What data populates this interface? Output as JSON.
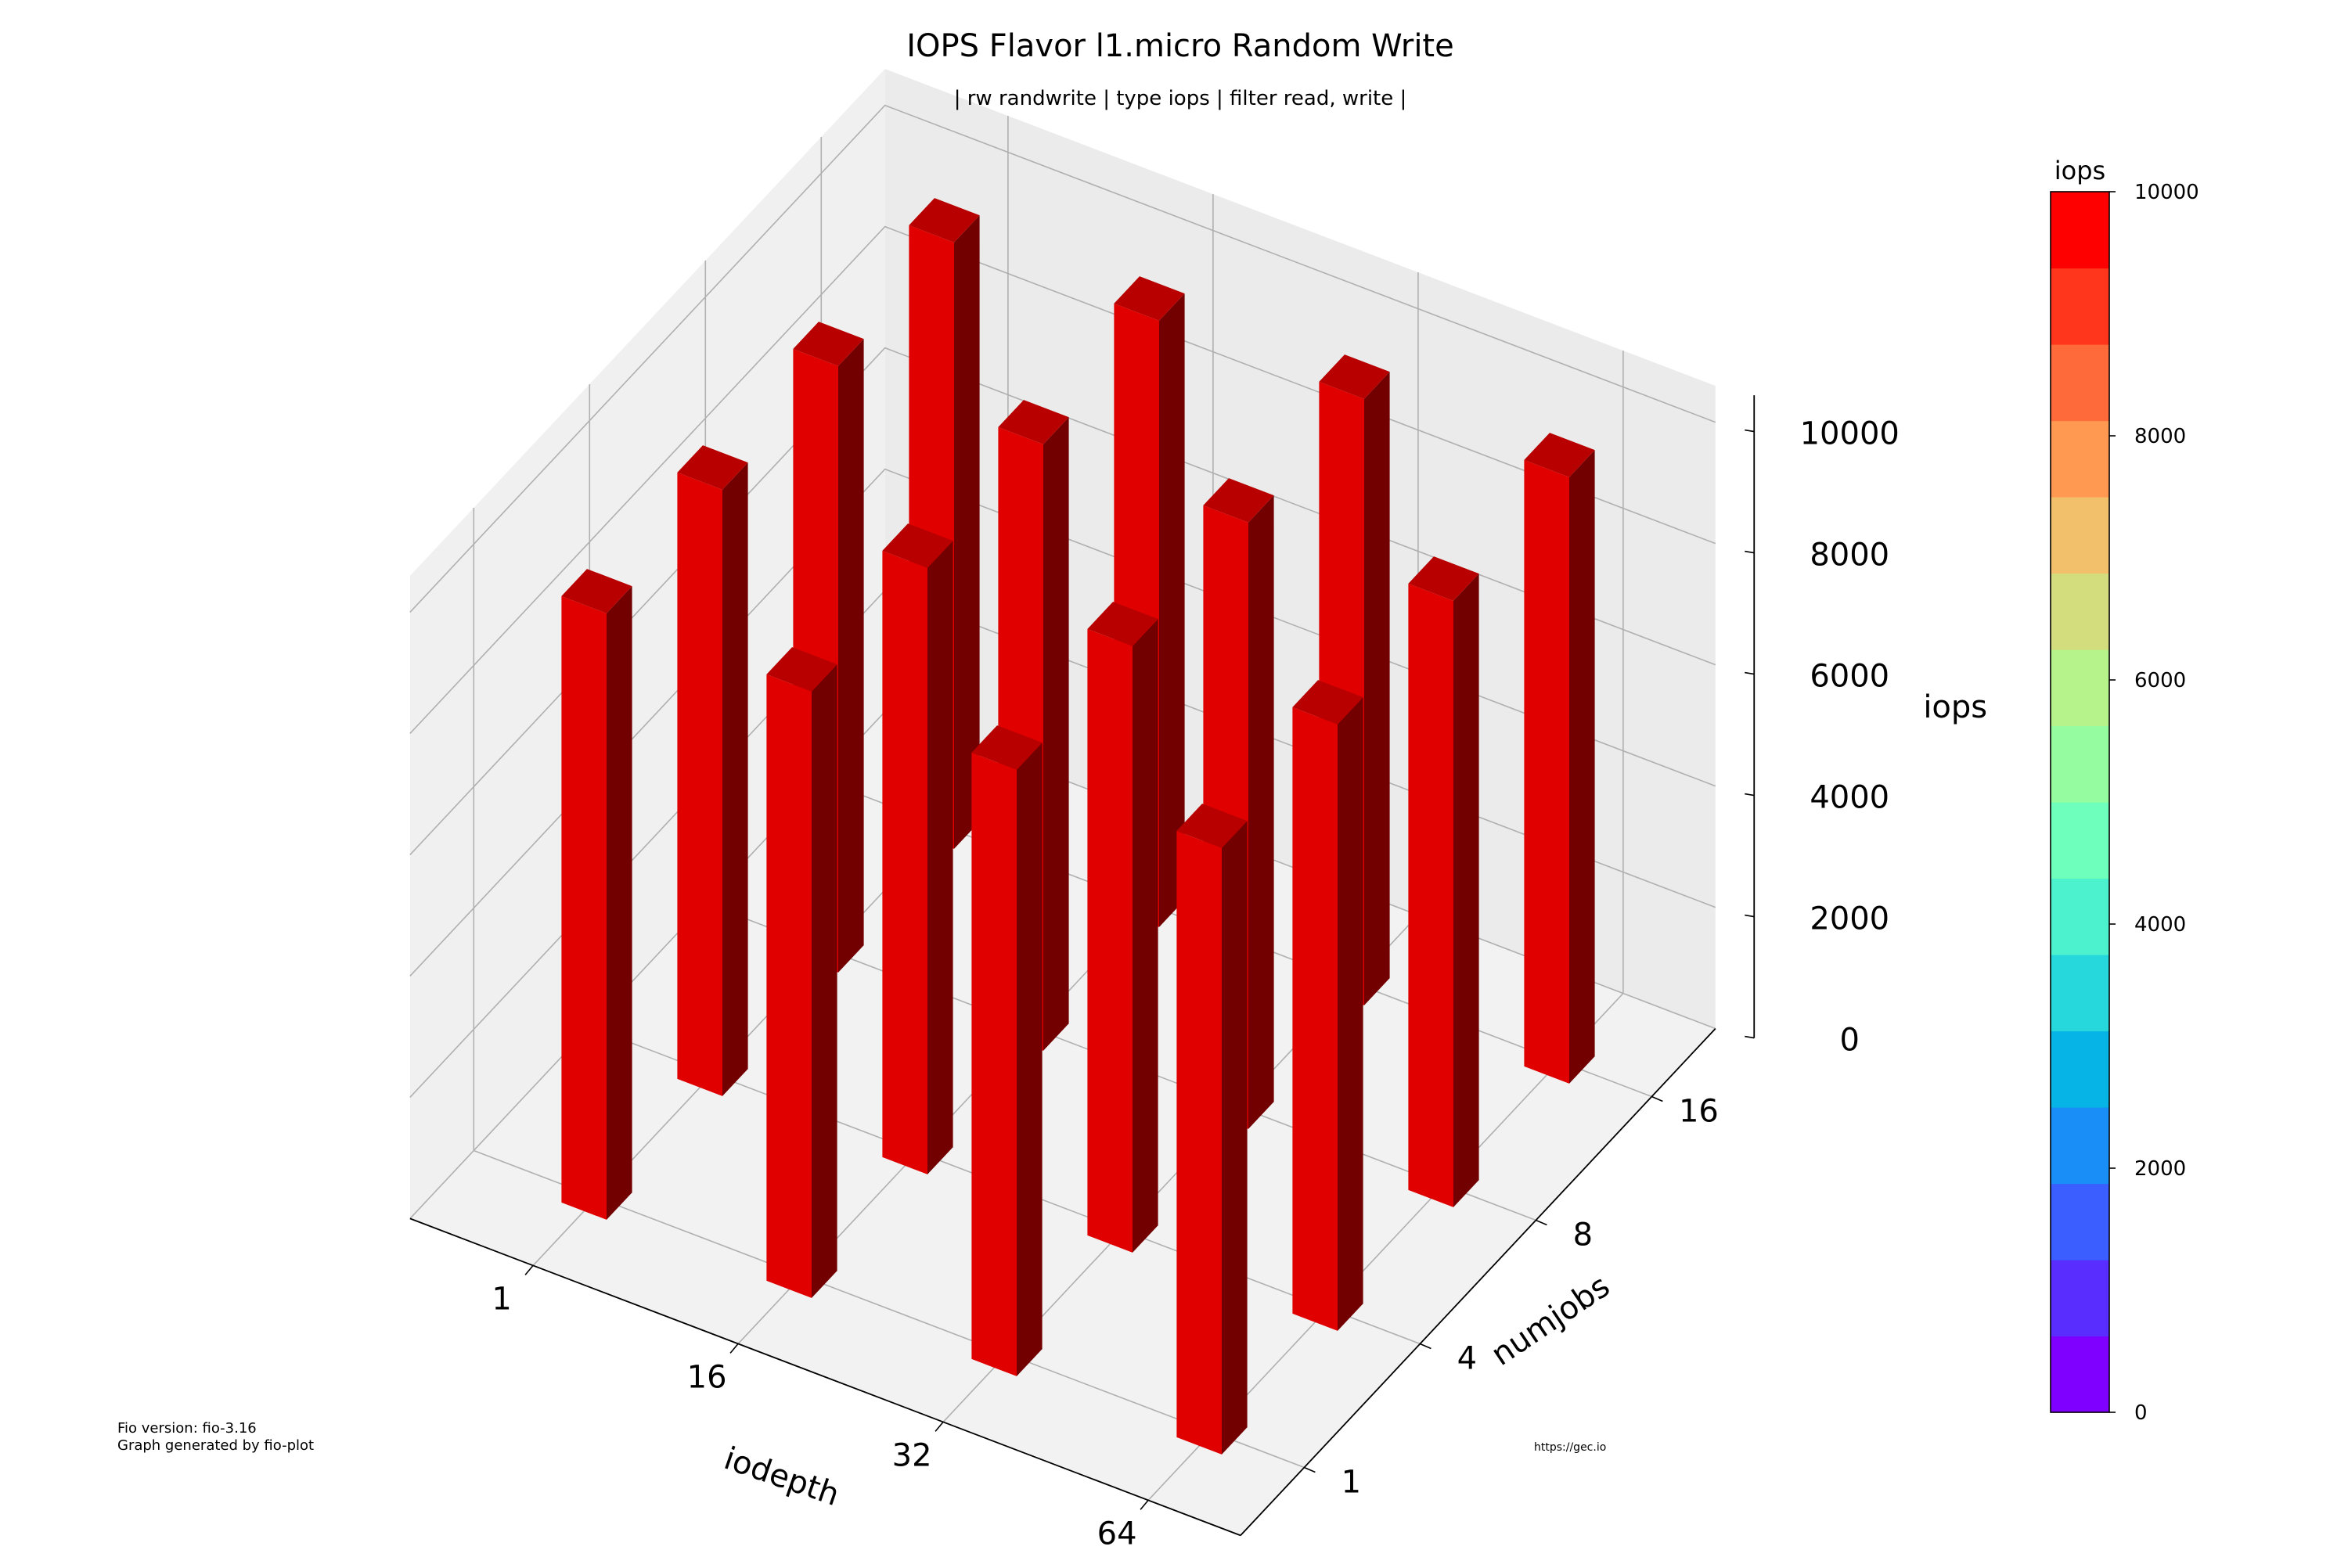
{
  "chart_data": {
    "type": "bar3d",
    "title": "IOPS Flavor l1.micro Random Write",
    "subtitle": "| rw randwrite | type iops | filter read, write |",
    "xlabel": "iodepth",
    "ylabel": "numjobs",
    "zlabel": "iops",
    "x_categories": [
      "1",
      "16",
      "32",
      "64"
    ],
    "y_categories": [
      "1",
      "4",
      "8",
      "16"
    ],
    "zlim": [
      0,
      10000
    ],
    "z_ticks": [
      "0",
      "2000",
      "4000",
      "6000",
      "8000",
      "10000"
    ],
    "grid": true,
    "series": [
      {
        "numjobs": "1",
        "values": [
          10000,
          10000,
          10000,
          10000
        ]
      },
      {
        "numjobs": "4",
        "values": [
          10000,
          10000,
          10000,
          10000
        ]
      },
      {
        "numjobs": "8",
        "values": [
          10000,
          10000,
          10000,
          10000
        ]
      },
      {
        "numjobs": "16",
        "values": [
          10000,
          10000,
          10000,
          10000
        ]
      }
    ],
    "bar_color": "#e00000",
    "colorbar": {
      "label": "iops",
      "range": [
        0,
        10000
      ],
      "ticks": [
        "0",
        "2000",
        "4000",
        "6000",
        "8000",
        "10000"
      ],
      "colors": [
        "#7f00ff",
        "#5a2dff",
        "#3a5eff",
        "#1a8ef7",
        "#06b4e6",
        "#26d8dc",
        "#4cf2cd",
        "#6dffbb",
        "#95fda0",
        "#b6f38a",
        "#d3dd7e",
        "#f2c06b",
        "#ff9850",
        "#ff6a3a",
        "#ff361c",
        "#ff0000"
      ]
    }
  },
  "footer": {
    "line1": "Fio version: fio-3.16",
    "line2": "Graph generated by fio-plot",
    "url": "https://gec.io"
  }
}
